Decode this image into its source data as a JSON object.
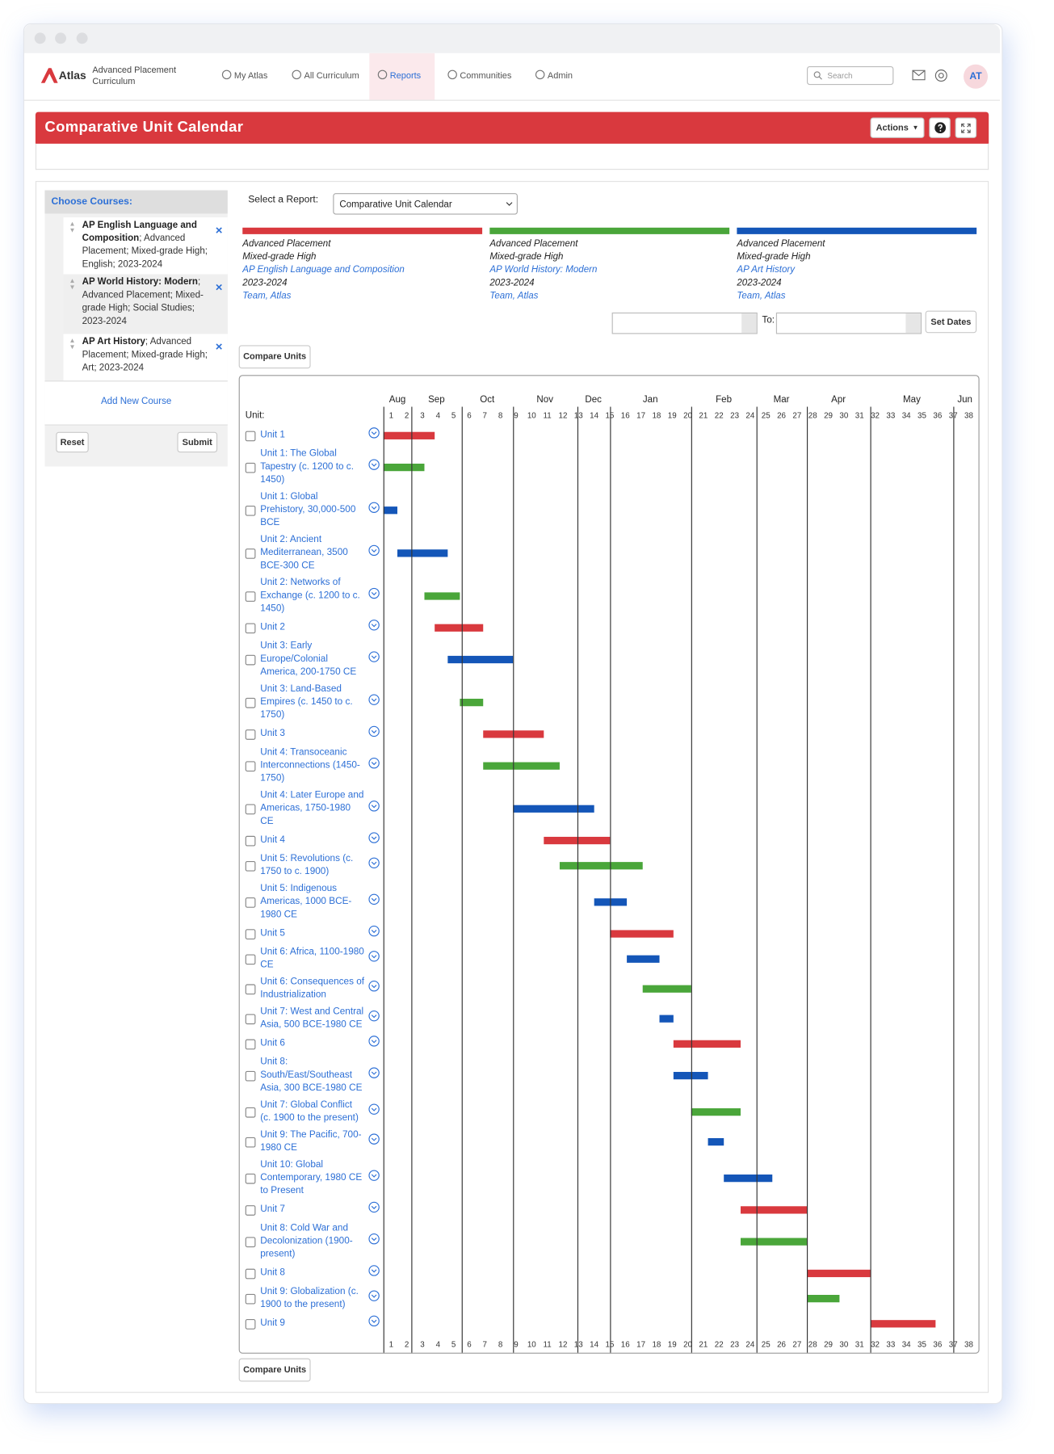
{
  "nav": {
    "brand": "Atlas",
    "org": "Advanced Placement Curriculum",
    "items": [
      "My Atlas",
      "All Curriculum",
      "Reports",
      "Communities",
      "Admin"
    ],
    "active_index": 2,
    "search": "Search",
    "avatar": "AT"
  },
  "header": {
    "title": "Comparative Unit Calendar",
    "actions": "Actions"
  },
  "sidebar": {
    "heading": "Choose Courses:",
    "courses": [
      {
        "name": "AP English Language and Composition",
        "details": "; Advanced Placement; Mixed-grade High; English; 2023-2024"
      },
      {
        "name": "AP World History: Modern",
        "details": "; Advanced Placement; Mixed-grade High; Social Studies; 2023-2024"
      },
      {
        "name": "AP Art History",
        "details": "; Advanced Placement; Mixed-grade High; Art; 2023-2024"
      }
    ],
    "add": "Add New Course",
    "reset": "Reset",
    "submit": "Submit"
  },
  "report": {
    "select_label": "Select a Report:",
    "selected": "Comparative Unit Calendar",
    "to_label": "To:",
    "set_dates": "Set Dates",
    "compare": "Compare Units"
  },
  "courses": [
    {
      "color": "#d9393e",
      "program": "Advanced Placement",
      "grade": "Mixed-grade High",
      "name": "AP English Language and Composition",
      "year": "2023-2024",
      "team": "Team, Atlas"
    },
    {
      "color": "#4aa63a",
      "program": "Advanced Placement",
      "grade": "Mixed-grade High",
      "name": "AP World History: Modern",
      "year": "2023-2024",
      "team": "Team, Atlas"
    },
    {
      "color": "#1456b8",
      "program": "Advanced Placement",
      "grade": "Mixed-grade High",
      "name": "AP Art History",
      "year": "2023-2024",
      "team": "Team, Atlas"
    }
  ],
  "calendar": {
    "unit_heading": "Unit:",
    "xlim": [
      0,
      38
    ],
    "weeks": [
      1,
      2,
      3,
      4,
      5,
      6,
      7,
      8,
      9,
      10,
      11,
      12,
      13,
      14,
      15,
      16,
      17,
      18,
      19,
      20,
      21,
      22,
      23,
      24,
      25,
      26,
      27,
      28,
      29,
      30,
      31,
      32,
      33,
      34,
      35,
      36,
      37,
      38
    ],
    "months": [
      {
        "label": "Aug",
        "start": 0
      },
      {
        "label": "Sep",
        "start": 1.8
      },
      {
        "label": "Oct",
        "start": 5.0
      },
      {
        "label": "Nov",
        "start": 8.3
      },
      {
        "label": "Dec",
        "start": 12.4
      },
      {
        "label": "Jan",
        "start": 14.5
      },
      {
        "label": "Feb",
        "start": 19.7
      },
      {
        "label": "Mar",
        "start": 23.9
      },
      {
        "label": "Apr",
        "start": 27.1
      },
      {
        "label": "May",
        "start": 31.2
      },
      {
        "label": "Jun",
        "start": 36.5
      }
    ],
    "units": [
      {
        "name": "Unit 1",
        "course": 0,
        "start": 0,
        "end": 3.3
      },
      {
        "name": "Unit 1: The Global Tapestry (c. 1200 to c. 1450)",
        "course": 1,
        "start": 0,
        "end": 2.6
      },
      {
        "name": "Unit 1: Global Prehistory, 30,000-500 BCE",
        "course": 2,
        "start": 0,
        "end": 0.9
      },
      {
        "name": "Unit 2: Ancient Mediterranean, 3500 BCE-300 CE",
        "course": 2,
        "start": 0.9,
        "end": 4.1
      },
      {
        "name": "Unit 2: Networks of Exchange (c. 1200 to c. 1450)",
        "course": 1,
        "start": 2.6,
        "end": 4.9
      },
      {
        "name": "Unit 2",
        "course": 0,
        "start": 3.3,
        "end": 6.4
      },
      {
        "name": "Unit 3: Early Europe/Colonial America, 200-1750 CE",
        "course": 2,
        "start": 4.1,
        "end": 8.3
      },
      {
        "name": "Unit 3: Land-Based Empires (c. 1450 to c. 1750)",
        "course": 1,
        "start": 4.9,
        "end": 6.4
      },
      {
        "name": "Unit 3",
        "course": 0,
        "start": 6.4,
        "end": 10.3
      },
      {
        "name": "Unit 4: Transoceanic Interconnections (1450-1750)",
        "course": 1,
        "start": 6.4,
        "end": 11.3
      },
      {
        "name": "Unit 4: Later Europe and Americas, 1750-1980 CE",
        "course": 2,
        "start": 8.3,
        "end": 13.5
      },
      {
        "name": "Unit 4",
        "course": 0,
        "start": 10.3,
        "end": 14.5
      },
      {
        "name": "Unit 5: Revolutions (c. 1750 to c. 1900)",
        "course": 1,
        "start": 11.3,
        "end": 16.6
      },
      {
        "name": "Unit 5: Indigenous Americas, 1000 BCE-1980 CE",
        "course": 2,
        "start": 13.5,
        "end": 15.6
      },
      {
        "name": "Unit 5",
        "course": 0,
        "start": 14.5,
        "end": 18.6
      },
      {
        "name": "Unit 6: Africa, 1100-1980 CE",
        "course": 2,
        "start": 15.6,
        "end": 17.7
      },
      {
        "name": "Unit 6: Consequences of Industrialization",
        "course": 1,
        "start": 16.6,
        "end": 19.7
      },
      {
        "name": "Unit 7: West and Central Asia, 500 BCE-1980 CE",
        "course": 2,
        "start": 17.7,
        "end": 18.6
      },
      {
        "name": "Unit 6",
        "course": 0,
        "start": 18.6,
        "end": 22.9
      },
      {
        "name": "Unit 8: South/East/Southeast Asia, 300 BCE-1980 CE",
        "course": 2,
        "start": 18.6,
        "end": 20.8
      },
      {
        "name": "Unit 7: Global Conflict (c. 1900 to the present)",
        "course": 1,
        "start": 19.7,
        "end": 22.9
      },
      {
        "name": "Unit 9: The Pacific, 700-1980 CE",
        "course": 2,
        "start": 20.8,
        "end": 21.8
      },
      {
        "name": "Unit 10: Global Contemporary, 1980 CE to Present",
        "course": 2,
        "start": 21.8,
        "end": 24.9
      },
      {
        "name": "Unit 7",
        "course": 0,
        "start": 22.9,
        "end": 27.1
      },
      {
        "name": "Unit 8: Cold War and Decolonization (1900-present)",
        "course": 1,
        "start": 22.9,
        "end": 27.1
      },
      {
        "name": "Unit 8",
        "course": 0,
        "start": 27.1,
        "end": 31.2
      },
      {
        "name": "Unit 9: Globalization (c. 1900 to the present)",
        "course": 1,
        "start": 27.1,
        "end": 29.2
      },
      {
        "name": "Unit 9",
        "course": 0,
        "start": 31.2,
        "end": 35.4
      }
    ]
  }
}
